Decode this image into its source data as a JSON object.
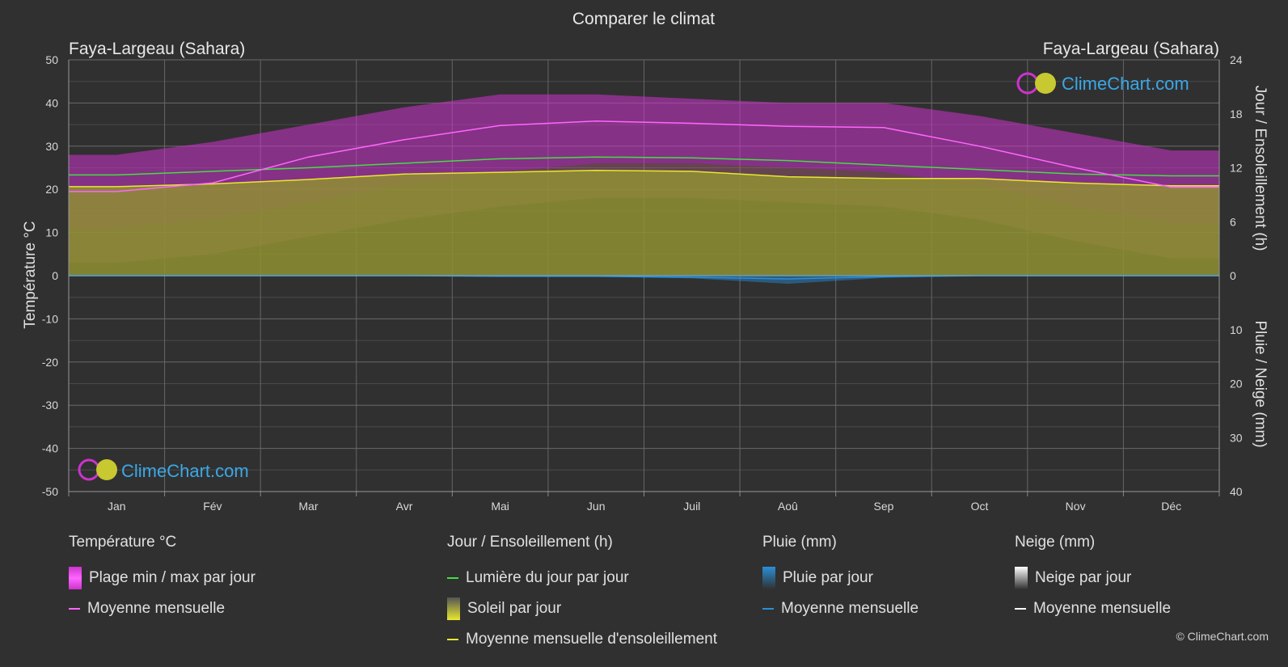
{
  "title": "Comparer le climat",
  "location_left": "Faya-Largeau (Sahara)",
  "location_right": "Faya-Largeau (Sahara)",
  "watermark": "ClimeChart.com",
  "copyright": "© ClimeChart.com",
  "colors": {
    "background": "#303030",
    "temp_range": "#cc33cc",
    "temp_mean": "#ff66ff",
    "daylight": "#44dd44",
    "sunshine_fill": "#8f8f32",
    "sunshine_mean": "#e8e830",
    "rain": "#2a8fd8",
    "snow": "#ffffff",
    "brand": "#3aa8e8"
  },
  "chart_data": {
    "type": "area",
    "months": [
      "Jan",
      "Fév",
      "Mar",
      "Avr",
      "Mai",
      "Jun",
      "Juil",
      "Aoû",
      "Sep",
      "Oct",
      "Nov",
      "Déc"
    ],
    "y_left": {
      "label": "Température °C",
      "range": [
        -50,
        50
      ],
      "ticks": [
        50,
        40,
        30,
        20,
        10,
        0,
        -10,
        -20,
        -30,
        -40,
        -50
      ]
    },
    "y_right_top": {
      "label": "Jour / Ensoleillement (h)",
      "range": [
        0,
        24
      ],
      "ticks": [
        24,
        18,
        12,
        6,
        0
      ]
    },
    "y_right_bottom": {
      "label": "Pluie / Neige (mm)",
      "range": [
        0,
        40
      ],
      "ticks": [
        10,
        20,
        30,
        40
      ]
    },
    "series": [
      {
        "name": "Plage min / max par jour",
        "unit": "°C",
        "min": [
          11,
          13,
          17,
          21,
          24,
          26,
          26,
          25,
          24,
          21,
          16,
          12
        ],
        "max": [
          28,
          31,
          35,
          39,
          42,
          42,
          41,
          40,
          40,
          37,
          33,
          29
        ]
      },
      {
        "name": "Moyenne mensuelle",
        "unit": "°C",
        "values": [
          19.5,
          21.5,
          27.5,
          31.5,
          34.8,
          35.8,
          35.3,
          34.6,
          34.3,
          30.0,
          25.0,
          20.5
        ]
      },
      {
        "name": "Lumière du jour par jour",
        "unit": "h",
        "values": [
          11.2,
          11.6,
          12.0,
          12.5,
          13.0,
          13.2,
          13.1,
          12.8,
          12.3,
          11.8,
          11.3,
          11.1
        ]
      },
      {
        "name": "Soleil par jour",
        "unit": "h",
        "values": [
          9.9,
          10.2,
          10.7,
          11.3,
          11.5,
          11.7,
          11.6,
          11.0,
          10.8,
          10.8,
          10.3,
          10.0
        ]
      },
      {
        "name": "Moyenne mensuelle d'ensoleillement",
        "unit": "h",
        "values": [
          9.9,
          10.2,
          10.7,
          11.3,
          11.5,
          11.7,
          11.6,
          11.0,
          10.8,
          10.8,
          10.3,
          10.0
        ]
      },
      {
        "name": "Pluie par jour",
        "unit": "mm",
        "values": [
          0,
          0,
          0,
          0,
          0.1,
          0.2,
          0.5,
          1.5,
          0.4,
          0,
          0,
          0
        ]
      },
      {
        "name": "Moyenne mensuelle",
        "unit": "mm",
        "values": [
          0,
          0,
          0,
          0,
          0.1,
          0.1,
          0.3,
          0.6,
          0.2,
          0,
          0,
          0
        ]
      }
    ],
    "grid": true
  },
  "legend": {
    "temp": {
      "header": "Température °C",
      "items": [
        "Plage min / max par jour",
        "Moyenne mensuelle"
      ]
    },
    "sun": {
      "header": "Jour / Ensoleillement (h)",
      "items": [
        "Lumière du jour par jour",
        "Soleil par jour",
        "Moyenne mensuelle d'ensoleillement"
      ]
    },
    "rain": {
      "header": "Pluie (mm)",
      "items": [
        "Pluie par jour",
        "Moyenne mensuelle"
      ]
    },
    "snow": {
      "header": "Neige (mm)",
      "items": [
        "Neige par jour",
        "Moyenne mensuelle"
      ]
    }
  }
}
